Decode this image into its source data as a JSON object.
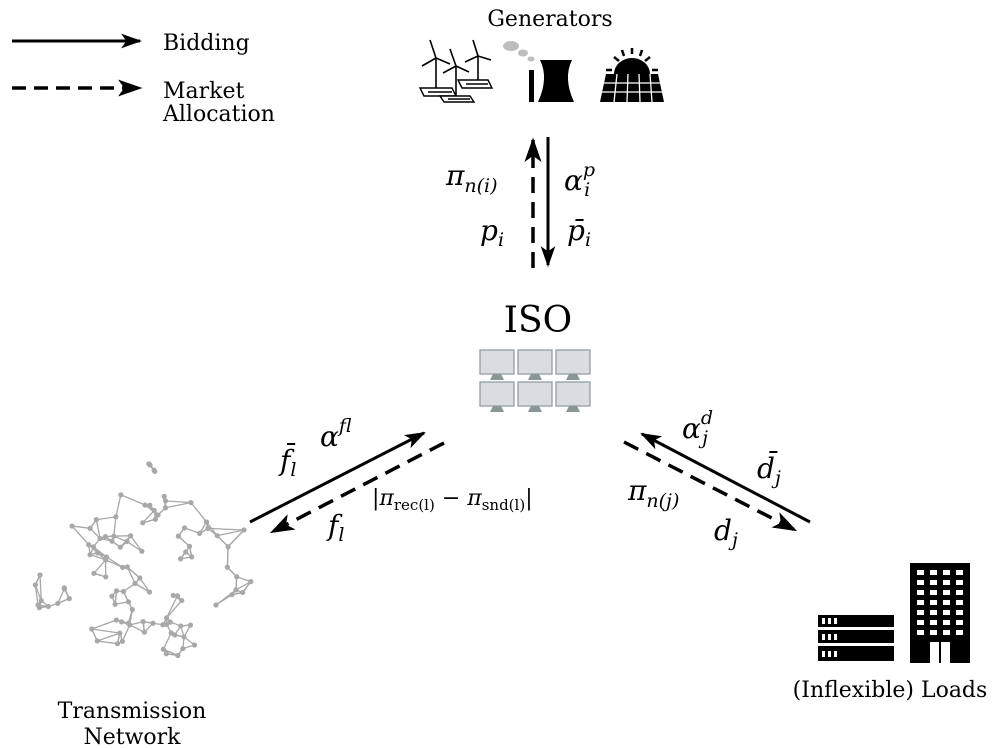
{
  "legend": {
    "bidding": "Bidding",
    "market_line1": "Market",
    "market_line2": "Allocation"
  },
  "nodes": {
    "generators": "Generators",
    "iso": "ISO",
    "network_line1": "Transmission",
    "network_line2": "Network",
    "loads": "(Inflexible) Loads"
  },
  "labels": {
    "gen_price": {
      "base": "π",
      "sub": "n(i)"
    },
    "gen_alpha": {
      "base": "α",
      "sup": "p",
      "sub": "i"
    },
    "gen_dispatch": {
      "base": "p",
      "sub": "i"
    },
    "gen_capacity": {
      "base": "p̄",
      "sub": "i"
    },
    "line_alpha": {
      "base": "α",
      "sup": "f",
      "sub": "l"
    },
    "line_capacity": {
      "base": "f̄",
      "sub": "l"
    },
    "line_flow": {
      "base": "f",
      "sub": "l"
    },
    "line_congestion": {
      "open": "|π",
      "sub1": "rec(l)",
      "mid": " − π",
      "sub2": "snd(l)",
      "close": "|"
    },
    "load_alpha": {
      "base": "α",
      "sup": "d",
      "sub": "j"
    },
    "load_capacity": {
      "base": "d̄",
      "sub": "j"
    },
    "load_price": {
      "base": "π",
      "sub": "n(j)"
    },
    "load_demand": {
      "base": "d",
      "sub": "j"
    }
  },
  "colors": {
    "ink": "#000000",
    "network": "#a8a8a8",
    "monitor": "#d9dde0",
    "monitor_stand": "#8a9696"
  },
  "icons": [
    "wind-turbine-icon",
    "solar-panel-icon",
    "power-plant-icon",
    "solar-sun-panel-icon",
    "control-room-monitors-icon",
    "server-rack-icon",
    "office-building-icon",
    "network-graph-icon"
  ]
}
